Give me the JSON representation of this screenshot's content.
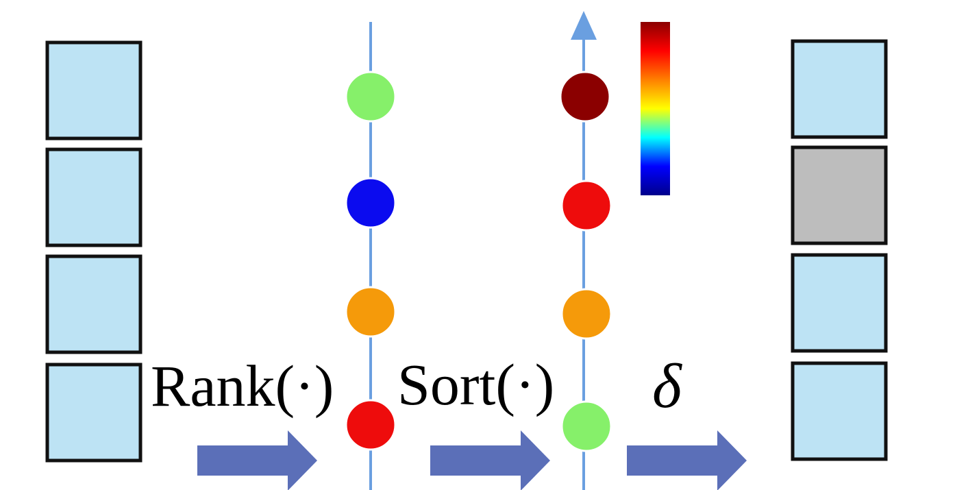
{
  "colors": {
    "block_fill": "#bde3f4",
    "block_masked_fill": "#bdbdbd",
    "block_stroke": "#111111",
    "axis_line": "#6a9fe0",
    "arrow_fill": "#5b6fb8",
    "dot_green": "#86f06a",
    "dot_blue": "#0b0bef",
    "dot_orange": "#f59a0a",
    "dot_red": "#ee0c0c",
    "dot_darkred": "#8b0000"
  },
  "input_blocks": [
    {
      "state": "plain"
    },
    {
      "state": "plain"
    },
    {
      "state": "plain"
    },
    {
      "state": "plain"
    }
  ],
  "output_blocks": [
    {
      "state": "plain"
    },
    {
      "state": "masked"
    },
    {
      "state": "plain"
    },
    {
      "state": "plain"
    }
  ],
  "rank_column": {
    "dots": [
      "dot_green",
      "dot_blue",
      "dot_orange",
      "dot_red"
    ]
  },
  "sort_column": {
    "dots": [
      "dot_darkred",
      "dot_red",
      "dot_orange",
      "dot_green"
    ]
  },
  "colorbar": {
    "stops": [
      "#00008b",
      "#0000ff",
      "#00ffff",
      "#ffff00",
      "#ff7f00",
      "#ff0000",
      "#8b0000"
    ]
  },
  "labels": {
    "rank": "Rank(·)",
    "sort": "Sort(·)",
    "delta": "δ"
  }
}
